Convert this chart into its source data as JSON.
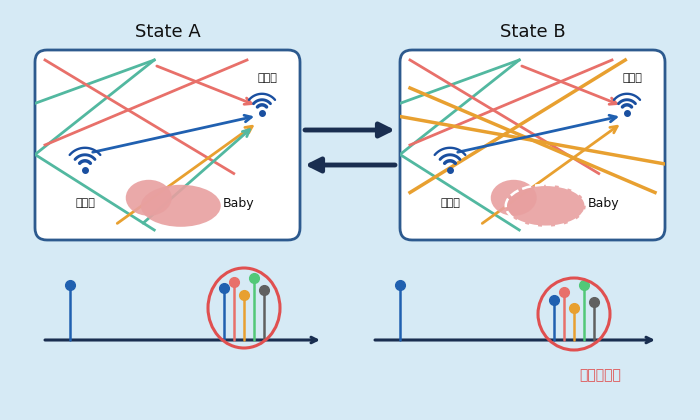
{
  "bg_color": "#d6eaf5",
  "box_color": "#ffffff",
  "box_edge_color": "#2d5a8e",
  "title_A": "State A",
  "title_B": "State B",
  "wifi_color": "#1a4fa0",
  "baby_color": "#e8a0a0",
  "baby_color2": "#d47070",
  "line_red": "#e8706a",
  "line_green": "#52b8a0",
  "line_blue": "#2060b0",
  "line_orange": "#e8a030",
  "stem_lone_color": "#2060b0",
  "stem_colors_A": [
    "#2060b0",
    "#e8706a",
    "#e8a030",
    "#52c878",
    "#606060"
  ],
  "stem_heights_A": [
    52,
    58,
    45,
    62,
    50
  ],
  "stem_colors_B": [
    "#2060b0",
    "#e8706a",
    "#e8a030",
    "#52c878",
    "#606060"
  ],
  "stem_heights_B": [
    40,
    48,
    32,
    55,
    38
  ],
  "circle_color": "#e05050",
  "annotation_color": "#e05050",
  "annotation_text": "振幅が変動",
  "label_receiver": "受信機",
  "label_transmitter": "送信機",
  "label_baby": "Baby",
  "arrow_color": "#1a2e50"
}
